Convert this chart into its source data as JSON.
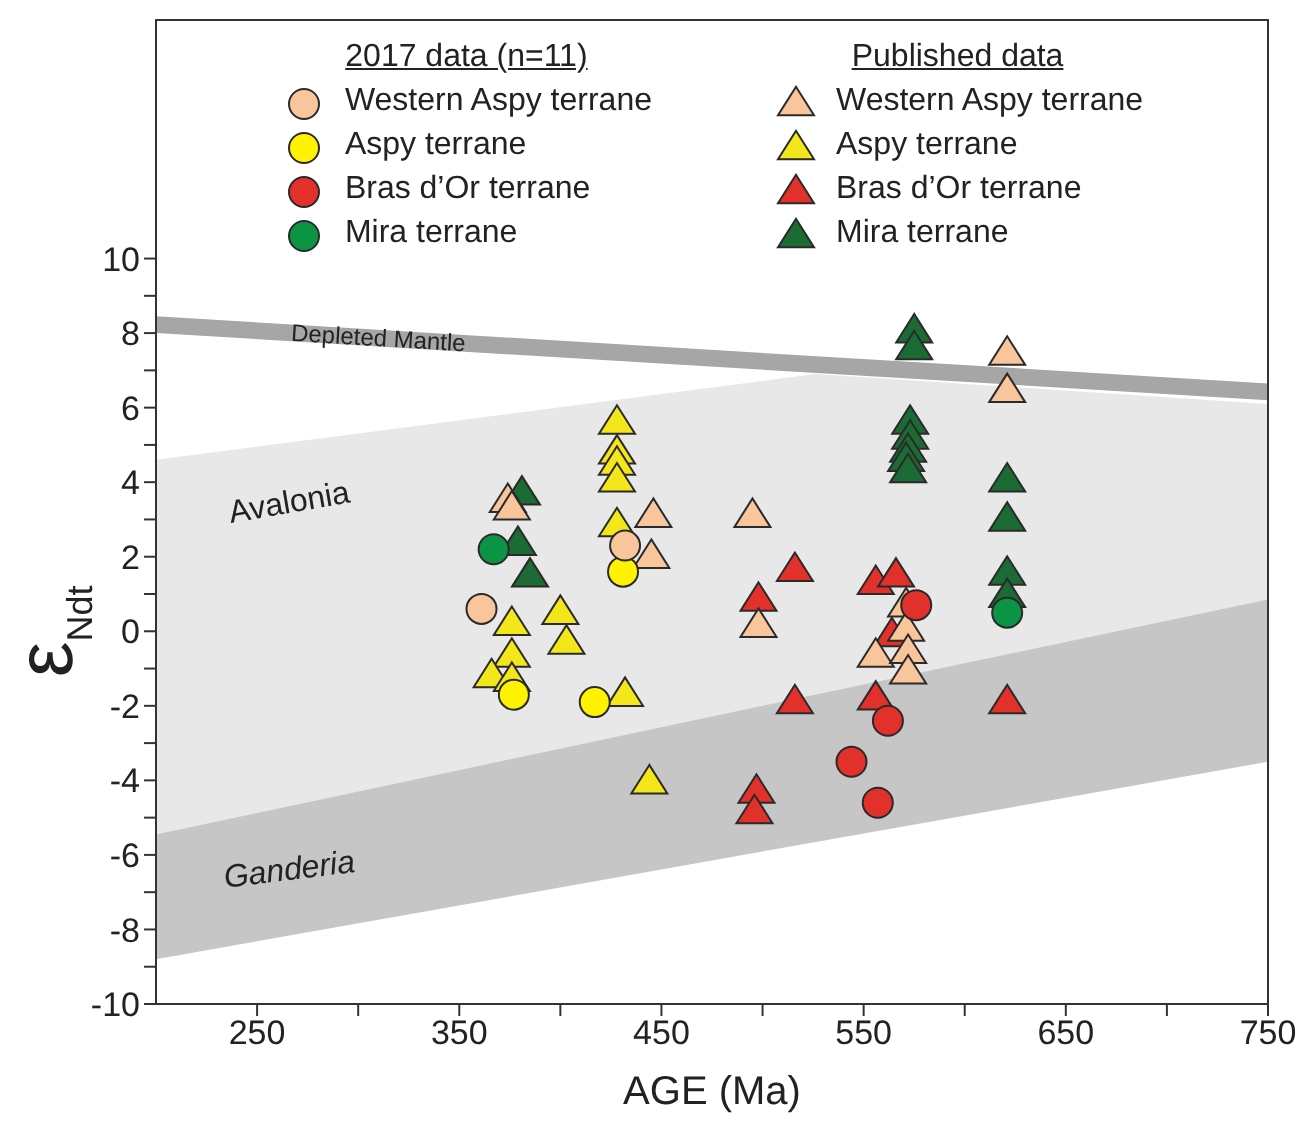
{
  "chart_data": {
    "type": "scatter",
    "xlabel": "AGE (Ma)",
    "ylabel": "ε$_{Ndt}$",
    "legend_title": [
      "2017 data (n=11)",
      "Published data"
    ],
    "xlim": [
      200,
      750
    ],
    "xticks": [
      250,
      {
        "value": 300,
        "label": null
      },
      350,
      {
        "value": 400,
        "label": null
      },
      450,
      {
        "value": 500,
        "label": null
      },
      550,
      {
        "value": 600,
        "label": null
      },
      650,
      {
        "value": 700,
        "label": null
      },
      750
    ],
    "ylim": [
      -10,
      16.4
    ],
    "yticks": [
      -10,
      {
        "value": -9,
        "label": null
      },
      -8,
      {
        "value": -7,
        "label": null
      },
      -6,
      {
        "value": -5,
        "label": null
      },
      -4,
      {
        "value": -3,
        "label": null
      },
      -2,
      {
        "value": -1,
        "label": null
      },
      0,
      {
        "value": 1,
        "label": null
      },
      2,
      {
        "value": 3,
        "label": null
      },
      4,
      {
        "value": 5,
        "label": null
      },
      6,
      {
        "value": 7,
        "label": null
      },
      8,
      {
        "value": 9,
        "label": null
      },
      10
    ],
    "legend": "top",
    "series": [
      {
        "name": "Ganderia",
        "type": "line",
        "x": [
          200,
          750
        ],
        "values": [
          null,
          null
        ],
        "lower": [
          -8.8,
          -3.5
        ],
        "upper": [
          1.55,
          3.45
        ]
      },
      {
        "name": "Avalonia",
        "type": "line",
        "x": [
          200,
          526,
          750
        ],
        "values": [
          null,
          null,
          null
        ],
        "lower": [
          -5.45,
          -1.7,
          0.85
        ],
        "upper": [
          4.6,
          6.9,
          6.1
        ]
      },
      {
        "name": "Depleted Mantle",
        "type": "line",
        "x": [
          200,
          750
        ],
        "values": [
          null,
          null
        ],
        "lower": [
          8.0,
          6.2
        ],
        "upper": [
          8.45,
          6.65
        ]
      },
      {
        "name": "Western Aspy terrane",
        "marker": "triangle",
        "color": "#f9c59b",
        "x": [
          374,
          376,
          446,
          445,
          495,
          498,
          571,
          571,
          556,
          572,
          572,
          621,
          621
        ],
        "values": [
          3.5,
          3.3,
          3.1,
          2.0,
          3.1,
          0.15,
          0.7,
          0.05,
          -0.65,
          -0.55,
          -1.1,
          7.45,
          6.45
        ]
      },
      {
        "name": "Aspy terrane",
        "marker": "triangle",
        "color": "#f3e61a",
        "x": [
          376,
          376,
          366,
          376,
          400,
          403,
          432,
          428,
          428,
          428,
          428,
          428,
          444
        ],
        "values": [
          0.2,
          -0.65,
          -1.2,
          -1.3,
          0.5,
          -0.3,
          -1.7,
          5.6,
          4.8,
          4.5,
          4.05,
          2.85,
          -4.05
        ]
      },
      {
        "name": "Bras d’Or terrane",
        "marker": "triangle",
        "color": "#e2302b",
        "x": [
          516,
          498,
          556,
          566,
          564,
          516,
          556,
          497,
          496,
          621
        ],
        "values": [
          1.65,
          0.85,
          1.3,
          1.5,
          -0.1,
          -1.9,
          -1.8,
          -4.3,
          -4.85,
          -1.9
        ]
      },
      {
        "name": "Mira terrane",
        "marker": "triangle",
        "color": "#1c6b35",
        "x": [
          381,
          379,
          385,
          575,
          575,
          573,
          573,
          572,
          571,
          572,
          621,
          621,
          621,
          621
        ],
        "values": [
          3.7,
          2.35,
          1.5,
          8.05,
          7.6,
          5.6,
          5.2,
          4.85,
          4.6,
          4.3,
          4.05,
          3.0,
          1.55,
          0.95
        ]
      },
      {
        "name": "Western Aspy terrane",
        "marker": "circle",
        "color": "#f9c59b",
        "x": [
          361,
          432
        ],
        "values": [
          0.6,
          2.3
        ]
      },
      {
        "name": "Aspy terrane",
        "marker": "circle",
        "color": "#fff200",
        "x": [
          377,
          417,
          431
        ],
        "values": [
          -1.7,
          -1.9,
          1.6
        ]
      },
      {
        "name": "Bras d’Or terrane",
        "marker": "circle",
        "color": "#e2302b",
        "x": [
          544,
          557,
          562,
          576
        ],
        "values": [
          -3.5,
          -4.6,
          -2.4,
          0.7
        ]
      },
      {
        "name": "Mira terrane",
        "marker": "circle",
        "color": "#0b9444",
        "x": [
          367,
          621
        ],
        "values": [
          2.2,
          0.5
        ]
      }
    ]
  }
}
